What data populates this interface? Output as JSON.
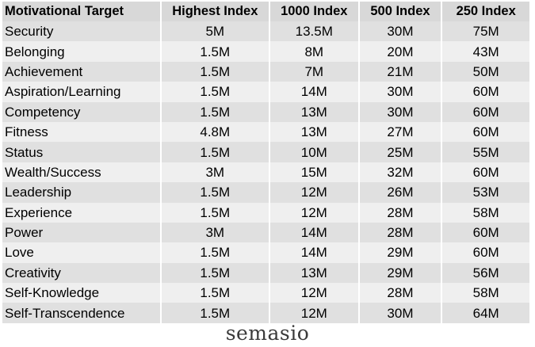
{
  "table": {
    "headers": [
      "Motivational Target",
      "Highest Index",
      "1000 Index",
      "500 Index",
      "250 Index"
    ],
    "rows": [
      [
        "Security",
        "5M",
        "13.5M",
        "30M",
        "75M"
      ],
      [
        "Belonging",
        "1.5M",
        "8M",
        "20M",
        "43M"
      ],
      [
        "Achievement",
        "1.5M",
        "7M",
        "21M",
        "50M"
      ],
      [
        "Aspiration/Learning",
        "1.5M",
        "14M",
        "30M",
        "60M"
      ],
      [
        "Competency",
        "1.5M",
        "13M",
        "30M",
        "60M"
      ],
      [
        "Fitness",
        "4.8M",
        "13M",
        "27M",
        "60M"
      ],
      [
        "Status",
        "1.5M",
        "10M",
        "25M",
        "55M"
      ],
      [
        "Wealth/Success",
        "3M",
        "15M",
        "32M",
        "60M"
      ],
      [
        "Leadership",
        "1.5M",
        "12M",
        "26M",
        "53M"
      ],
      [
        "Experience",
        "1.5M",
        "12M",
        "28M",
        "58M"
      ],
      [
        "Power",
        "3M",
        "14M",
        "28M",
        "60M"
      ],
      [
        "Love",
        "1.5M",
        "14M",
        "29M",
        "60M"
      ],
      [
        "Creativity",
        "1.5M",
        "13M",
        "29M",
        "56M"
      ],
      [
        "Self-Knowledge",
        "1.5M",
        "12M",
        "28M",
        "58M"
      ],
      [
        "Self-Transcendence",
        "1.5M",
        "12M",
        "30M",
        "64M"
      ]
    ]
  },
  "logo": {
    "text": "semasio"
  }
}
